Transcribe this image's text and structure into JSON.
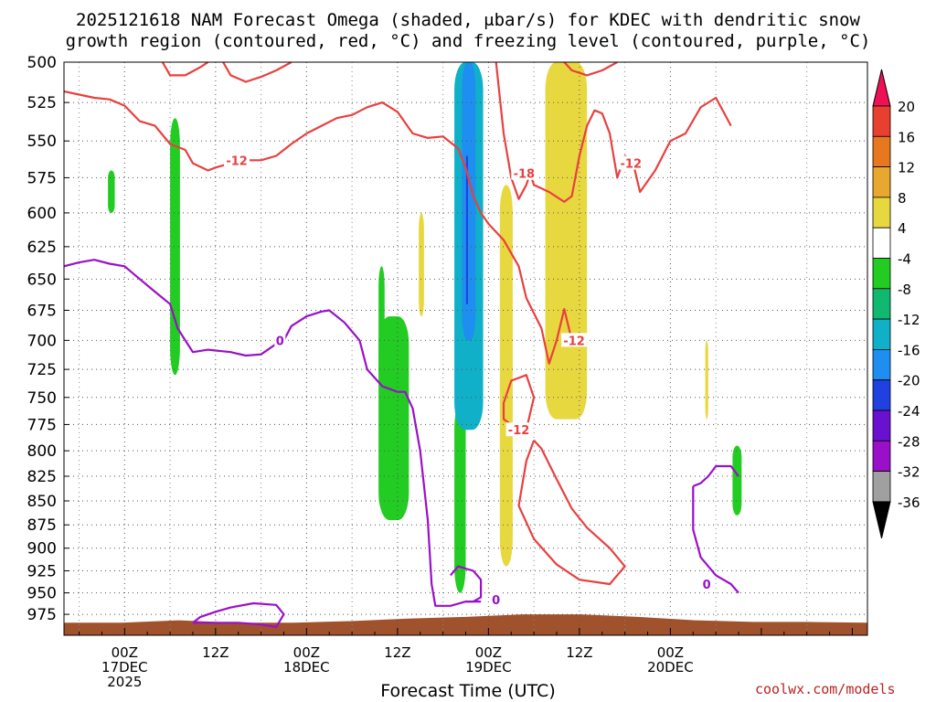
{
  "chart_data": {
    "type": "heatmap",
    "title_line1": "2025121618 NAM Forecast Omega (shaded, μbar/s) for KDEC with dendritic snow",
    "title_line2": "growth region (contoured, red, °C) and freezing level (contoured, purple, °C)",
    "xlabel": "Forecast Time (UTC)",
    "ylabel": "",
    "yticks": [
      500,
      525,
      550,
      575,
      600,
      625,
      650,
      675,
      700,
      725,
      750,
      775,
      800,
      825,
      850,
      875,
      900,
      925,
      950,
      975
    ],
    "ylim": [
      500,
      1000
    ],
    "y_scale": "log-pressure",
    "xlim_hours": [
      -8,
      98
    ],
    "xticks": [
      {
        "hour": 0,
        "label": [
          "00Z",
          "17DEC",
          "2025"
        ]
      },
      {
        "hour": 12,
        "label": [
          "12Z"
        ]
      },
      {
        "hour": 24,
        "label": [
          "00Z",
          "18DEC"
        ]
      },
      {
        "hour": 36,
        "label": [
          "12Z"
        ]
      },
      {
        "hour": 48,
        "label": [
          "00Z",
          "19DEC"
        ]
      },
      {
        "hour": 60,
        "label": [
          "12Z"
        ]
      },
      {
        "hour": 72,
        "label": [
          "00Z",
          "20DEC"
        ]
      }
    ],
    "grid": true,
    "colorbar": {
      "levels": [
        20,
        16,
        12,
        8,
        4,
        -4,
        -8,
        -12,
        -16,
        -20,
        -24,
        -28,
        -32,
        -36
      ],
      "colors": [
        "#ee1155",
        "#e84030",
        "#e87820",
        "#e8a830",
        "#e8d840",
        "#ffffff",
        "#22cc22",
        "#10b870",
        "#10b0c8",
        "#1e8ff0",
        "#2040e0",
        "#6a10d0",
        "#9a10c8",
        "#a0a0a0",
        "#000000"
      ],
      "top_arrow_color": "#ee1155",
      "bottom_arrow_color": "#000000"
    },
    "red_contour_labels": [
      {
        "text": "-12",
        "x": 14.8,
        "p": 563
      },
      {
        "text": "-18",
        "x": 52.7,
        "p": 572
      },
      {
        "text": "-12",
        "x": 66.8,
        "p": 565
      },
      {
        "text": "-12",
        "x": 59.3,
        "p": 700
      },
      {
        "text": "-12",
        "x": 52.0,
        "p": 780
      }
    ],
    "purple_contour_labels": [
      {
        "text": "0",
        "x": 20.5,
        "p": 700
      },
      {
        "text": "0",
        "x": 49.0,
        "p": 958
      },
      {
        "text": "0",
        "x": 76.8,
        "p": 940
      }
    ],
    "series": [
      {
        "name": "dendritic growth region (red, -12/-18 °C)",
        "color": "#e84040",
        "paths": [
          [
            [
              -8,
              518
            ],
            [
              -4,
              522
            ],
            [
              -2,
              523
            ],
            [
              0,
              527
            ],
            [
              2,
              537
            ],
            [
              4,
              540
            ],
            [
              6,
              552
            ],
            [
              8,
              556
            ],
            [
              9,
              565
            ],
            [
              11,
              570
            ],
            [
              12,
              568
            ],
            [
              14,
              565
            ],
            [
              16,
              563
            ],
            [
              18,
              563
            ],
            [
              20,
              560
            ],
            [
              22,
              552
            ],
            [
              24,
              545
            ],
            [
              26,
              540
            ],
            [
              28,
              535
            ],
            [
              30,
              533
            ],
            [
              32,
              528
            ],
            [
              34,
              525
            ],
            [
              36,
              531
            ],
            [
              38,
              545
            ],
            [
              40,
              548
            ],
            [
              42,
              547
            ],
            [
              44,
              555
            ],
            [
              45,
              568
            ],
            [
              46,
              588
            ],
            [
              47,
              600
            ],
            [
              48,
              608
            ],
            [
              50,
              620
            ],
            [
              52,
              640
            ],
            [
              53,
              665
            ],
            [
              55,
              690
            ],
            [
              56,
              720
            ],
            [
              57,
              700
            ],
            [
              58,
              674
            ],
            [
              59,
              700
            ]
          ],
          [
            [
              49,
              500
            ],
            [
              50,
              545
            ],
            [
              51,
              575
            ],
            [
              52,
              590
            ],
            [
              53,
              580
            ],
            [
              53.5,
              572
            ]
          ],
          [
            [
              53.5,
              572
            ],
            [
              54,
              580
            ],
            [
              56,
              585
            ],
            [
              58,
              592
            ],
            [
              59,
              588
            ],
            [
              60,
              560
            ],
            [
              61,
              540
            ],
            [
              62,
              530
            ],
            [
              63,
              532
            ],
            [
              64,
              545
            ],
            [
              65,
              575
            ],
            [
              66,
              560
            ],
            [
              67,
              563
            ]
          ],
          [
            [
              67,
              563
            ],
            [
              68,
              585
            ],
            [
              70,
              570
            ],
            [
              72,
              550
            ],
            [
              74,
              545
            ],
            [
              76,
              528
            ],
            [
              78,
              522
            ],
            [
              80,
              540
            ]
          ],
          [
            [
              13,
              500
            ],
            [
              14,
              508
            ],
            [
              16,
              512
            ],
            [
              18,
              509
            ],
            [
              20,
              505
            ],
            [
              22,
              500
            ]
          ],
          [
            [
              5,
              500
            ],
            [
              6,
              508
            ],
            [
              8,
              508
            ],
            [
              10,
              503
            ],
            [
              11,
              500
            ]
          ],
          [
            [
              58,
              500
            ],
            [
              59,
              505
            ],
            [
              61,
              508
            ],
            [
              63,
              505
            ],
            [
              65,
              500
            ]
          ],
          [
            [
              52,
              780
            ],
            [
              50,
              770
            ],
            [
              50,
              755
            ],
            [
              51,
              735
            ],
            [
              53,
              730
            ],
            [
              54,
              750
            ],
            [
              53,
              780
            ],
            [
              52,
              780
            ]
          ],
          [
            [
              54,
              790
            ],
            [
              53,
              810
            ],
            [
              52,
              855
            ],
            [
              54,
              890
            ],
            [
              57,
              918
            ],
            [
              60,
              935
            ],
            [
              64,
              940
            ],
            [
              66,
              920
            ],
            [
              64,
              900
            ],
            [
              61,
              878
            ],
            [
              59,
              858
            ],
            [
              57,
              828
            ],
            [
              55,
              798
            ],
            [
              54,
              790
            ]
          ]
        ]
      },
      {
        "name": "freezing level (purple, 0 °C)",
        "color": "#9a10c8",
        "paths": [
          [
            [
              -8,
              640
            ],
            [
              -6,
              637
            ],
            [
              -4,
              635
            ],
            [
              -2,
              638
            ],
            [
              0,
              640
            ],
            [
              2,
              650
            ],
            [
              4,
              660
            ],
            [
              6,
              670
            ],
            [
              7,
              690
            ],
            [
              8,
              700
            ],
            [
              9,
              710
            ],
            [
              11,
              708
            ],
            [
              14,
              710
            ],
            [
              16,
              713
            ],
            [
              18,
              712
            ],
            [
              20,
              703
            ],
            [
              21,
              700
            ]
          ],
          [
            [
              21,
              700
            ],
            [
              22,
              688
            ],
            [
              24,
              680
            ],
            [
              26,
              676
            ],
            [
              27,
              675
            ],
            [
              29,
              685
            ],
            [
              31,
              700
            ],
            [
              32,
              725
            ],
            [
              34,
              740
            ],
            [
              36,
              745
            ],
            [
              37,
              745
            ],
            [
              38,
              760
            ],
            [
              39,
              800
            ],
            [
              40,
              870
            ],
            [
              40.5,
              940
            ],
            [
              41,
              965
            ],
            [
              43,
              965
            ],
            [
              45,
              960
            ],
            [
              47,
              960
            ]
          ],
          [
            [
              43,
              930
            ],
            [
              44,
              920
            ],
            [
              46,
              925
            ],
            [
              47,
              935
            ],
            [
              47,
              955
            ],
            [
              46,
              960
            ],
            [
              45,
              960
            ]
          ],
          [
            [
              9,
              985
            ],
            [
              10,
              978
            ],
            [
              12,
              972
            ],
            [
              14,
              967
            ],
            [
              17,
              962
            ],
            [
              20,
              964
            ],
            [
              21,
              975
            ],
            [
              20,
              990
            ],
            [
              18,
              987
            ],
            [
              15,
              985
            ],
            [
              9,
              985
            ]
          ],
          [
            [
              75,
              835
            ],
            [
              76,
              832
            ],
            [
              77,
              825
            ],
            [
              78,
              815
            ],
            [
              80,
              815
            ],
            [
              81,
              825
            ]
          ],
          [
            [
              75,
              835
            ],
            [
              75,
              880
            ],
            [
              76,
              910
            ],
            [
              78,
              930
            ],
            [
              80,
              940
            ],
            [
              81,
              950
            ]
          ]
        ]
      }
    ],
    "omega_regions": [
      {
        "level": "-8 to -4",
        "color": "#22cc22",
        "desc": "small green patch",
        "x": [
          -2.2,
          -1.3
        ],
        "p": [
          570,
          600
        ]
      },
      {
        "level": "-8 to -4",
        "color": "#22cc22",
        "desc": "green streak",
        "x": [
          6.0,
          7.3
        ],
        "p": [
          535,
          730
        ]
      },
      {
        "level": "-8 to -4",
        "color": "#22cc22",
        "desc": "green streak",
        "x": [
          33.5,
          34.3
        ],
        "p": [
          640,
          745
        ]
      },
      {
        "level": "-8 to -4",
        "color": "#22cc22",
        "desc": "green blob",
        "x": [
          33.5,
          37.5
        ],
        "p": [
          680,
          870
        ]
      },
      {
        "level": "-8 to -4",
        "color": "#22cc22",
        "desc": "green streak",
        "x": [
          43.5,
          45.0
        ],
        "p": [
          755,
          950
        ]
      },
      {
        "level": "-16 to -4",
        "color": "#10b0c8",
        "desc": "strong upward motion core",
        "x": [
          43.5,
          47.3
        ],
        "p": [
          500,
          780
        ]
      },
      {
        "level": "4 to 8",
        "color": "#e8d840",
        "desc": "yellow streak",
        "x": [
          49.5,
          51.2
        ],
        "p": [
          580,
          920
        ]
      },
      {
        "level": "4 to 8",
        "color": "#e8d840",
        "desc": "yellow streak",
        "x": [
          38.8,
          39.5
        ],
        "p": [
          600,
          680
        ]
      },
      {
        "level": "4 to 8",
        "color": "#e8d840",
        "desc": "yellow column",
        "x": [
          55.5,
          61.0
        ],
        "p": [
          500,
          770
        ]
      },
      {
        "level": "4 to 8",
        "color": "#e8d840",
        "desc": "yellow sliver",
        "x": [
          76.6,
          77.0
        ],
        "p": [
          700,
          770
        ]
      },
      {
        "level": "-8 to -4",
        "color": "#22cc22",
        "desc": "green patch",
        "x": [
          80.2,
          81.4
        ],
        "p": [
          795,
          865
        ]
      }
    ],
    "terrain": {
      "color": "#a0522d",
      "surface_p": [
        985,
        985,
        982,
        985,
        985,
        983,
        980,
        978,
        975,
        975,
        978,
        982,
        984,
        984,
        985
      ]
    }
  },
  "credit": "coolwx.com/models"
}
